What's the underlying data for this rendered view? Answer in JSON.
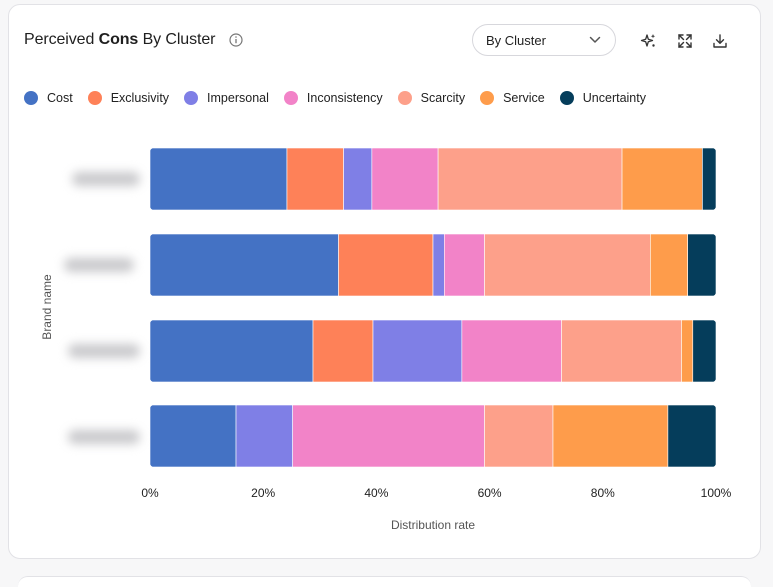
{
  "header": {
    "title_prefix": "Perceived ",
    "title_bold": "Cons",
    "title_suffix": " By Cluster",
    "info_icon": "info-icon",
    "dropdown_value": "By Cluster",
    "tools": [
      "sparkle-icon",
      "expand-icon",
      "download-icon"
    ]
  },
  "chart_data": {
    "type": "bar",
    "orientation": "horizontal",
    "stacked": true,
    "normalized": true,
    "categories": [
      "Brand 1",
      "Brand 2",
      "Brand 3",
      "Brand 4"
    ],
    "categories_blurred": true,
    "series": [
      {
        "name": "Cost",
        "color": "#4472c4",
        "values": [
          24.2,
          33.3,
          28.8,
          15.2
        ]
      },
      {
        "name": "Exclusivity",
        "color": "#fe8158",
        "values": [
          10.0,
          16.7,
          10.6,
          0
        ]
      },
      {
        "name": "Impersonal",
        "color": "#7f7fe6",
        "values": [
          5.0,
          2.0,
          15.7,
          10.0
        ]
      },
      {
        "name": "Inconsistency",
        "color": "#f283c8",
        "values": [
          11.7,
          7.1,
          17.6,
          33.9
        ]
      },
      {
        "name": "Scarcity",
        "color": "#fda08a",
        "values": [
          32.5,
          29.3,
          21.2,
          12.1
        ]
      },
      {
        "name": "Service",
        "color": "#fe9c4b",
        "values": [
          14.2,
          6.6,
          2.0,
          20.3
        ]
      },
      {
        "name": "Uncertainty",
        "color": "#053d5b",
        "values": [
          2.4,
          5.0,
          4.1,
          8.5
        ]
      }
    ],
    "xlabel": "Distribution rate",
    "ylabel": "Brand name",
    "xlim": [
      0,
      100
    ],
    "x_ticks": [
      "0%",
      "20%",
      "40%",
      "60%",
      "80%",
      "100%"
    ],
    "grid": false,
    "legend": "top-left"
  }
}
